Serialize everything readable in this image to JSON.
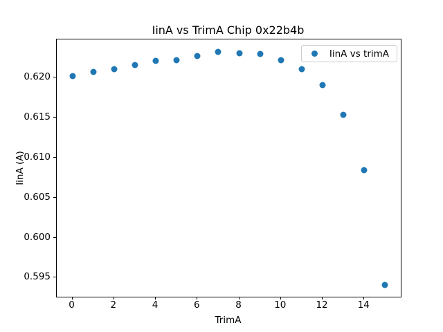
{
  "figure": {
    "background": "#ffffff",
    "text_color": "#000000",
    "spine_color": "#000000",
    "legend_border_color": "#cccccc"
  },
  "chart_data": {
    "type": "scatter",
    "title": "IinA vs TrimA Chip 0x22b4b",
    "xlabel": "TrimA",
    "ylabel": "IinA (A)",
    "legend_label": "IinA vs trimA",
    "legend_position": "upper right",
    "grid": false,
    "marker_color": "#1f77b4",
    "x": [
      0,
      1,
      2,
      3,
      4,
      5,
      6,
      7,
      8,
      9,
      10,
      11,
      12,
      13,
      14,
      15
    ],
    "series": [
      {
        "name": "IinA vs trimA",
        "values": [
          0.6202,
          0.6207,
          0.6211,
          0.6216,
          0.6221,
          0.6222,
          0.6227,
          0.6232,
          0.6231,
          0.623,
          0.6222,
          0.6211,
          0.6191,
          0.6154,
          0.6084,
          0.5941
        ]
      }
    ],
    "xlim": [
      -0.75,
      15.75
    ],
    "ylim": [
      0.5926,
      0.6248
    ],
    "x_ticks": {
      "values": [
        0,
        2,
        4,
        6,
        8,
        10,
        12,
        14
      ],
      "labels": [
        "0",
        "2",
        "4",
        "6",
        "8",
        "10",
        "12",
        "14"
      ]
    },
    "y_ticks": {
      "values": [
        0.595,
        0.6,
        0.605,
        0.61,
        0.615,
        0.62
      ],
      "labels": [
        "0.595",
        "0.600",
        "0.605",
        "0.610",
        "0.615",
        "0.620"
      ]
    }
  }
}
